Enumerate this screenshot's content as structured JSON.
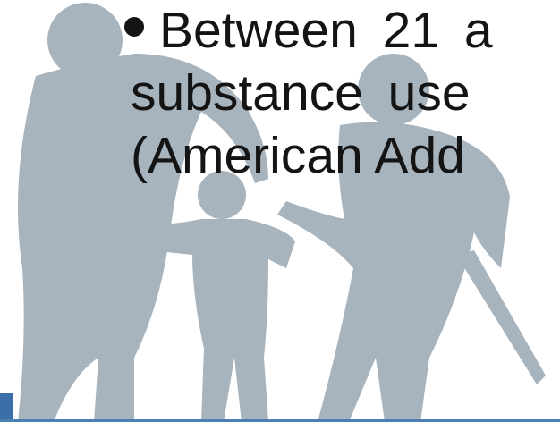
{
  "bullet": {
    "lines": [
      "Between 21 a",
      "substance use",
      "(American Add"
    ]
  }
}
